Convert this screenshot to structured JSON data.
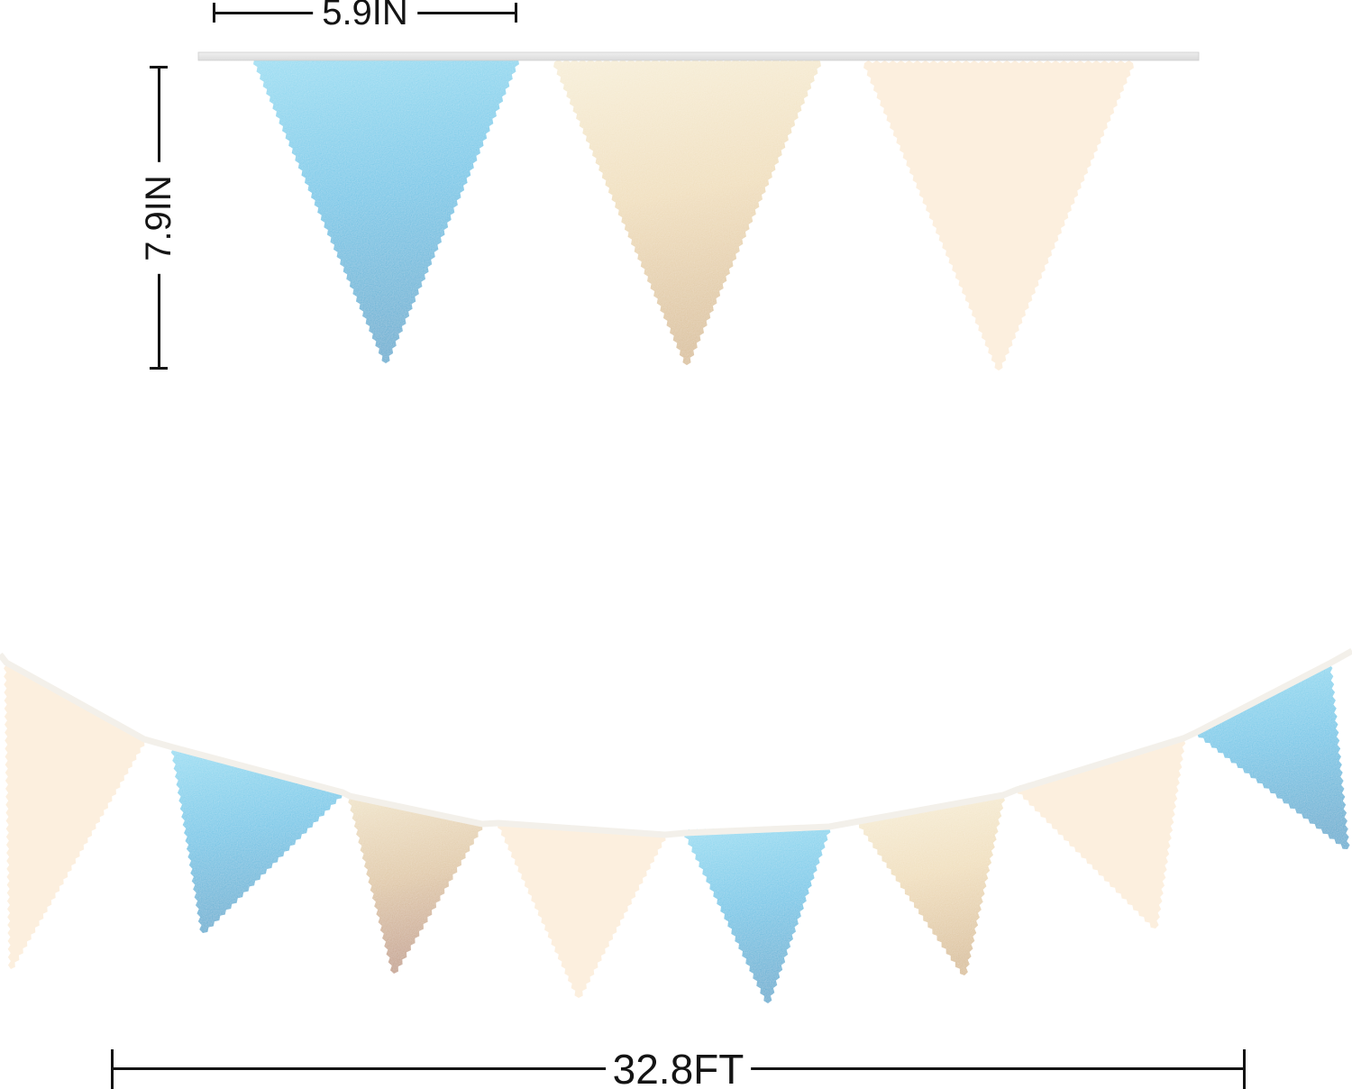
{
  "measurements": {
    "flag_width_label": "5.9IN",
    "flag_height_label": "7.9IN",
    "garland_length_label": "32.8FT"
  },
  "palette": {
    "blue_stops": [
      "#86d9f1",
      "#4abee4",
      "#2b9fca"
    ],
    "gold_stops": [
      "#f6ecd2",
      "#eed9b0",
      "#d5b687"
    ],
    "gold_rose_stops": [
      "#eee0c0",
      "#dcc096",
      "#bb8f74"
    ],
    "cream": "#fcefde",
    "ribbon": "#efefef",
    "ribbon_dark": "#dcdcdc",
    "ribbon_edge": "#cfcfcf",
    "string": "#f3f0ea",
    "dimension_color": "#141414"
  },
  "top_banner": {
    "flag_colors": [
      "blue",
      "gold",
      "cream"
    ]
  },
  "bottom_banner": {
    "flag_colors": [
      "cream",
      "blue",
      "gold",
      "cream",
      "blue",
      "gold",
      "cream",
      "blue"
    ]
  }
}
